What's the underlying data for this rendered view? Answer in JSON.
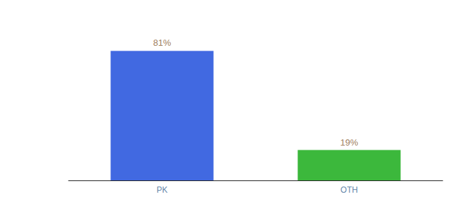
{
  "chart_data": {
    "type": "bar",
    "categories": [
      "PK",
      "OTH"
    ],
    "values": [
      81,
      19
    ],
    "value_labels": [
      "81%",
      "19%"
    ],
    "colors": [
      "#4169e1",
      "#3cb83c"
    ],
    "ylim": [
      0,
      100
    ],
    "grid": false,
    "data_labels": true,
    "tick_labels": "x"
  }
}
